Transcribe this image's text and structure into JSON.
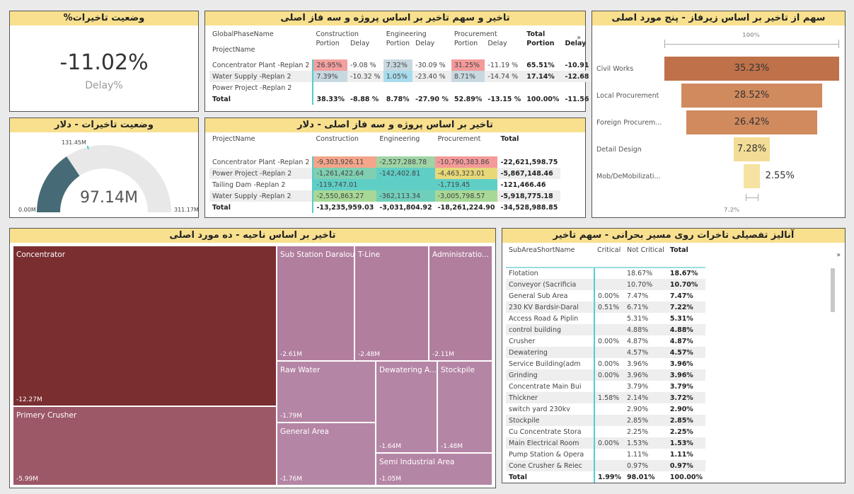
{
  "kpi": {
    "title": "وضعیت تاخیرات%",
    "value": "-11.02%",
    "label": "Delay%"
  },
  "gauge": {
    "title": "وضعیت تاخیرات - دلار",
    "value": 97.14,
    "value_label": "97.14M",
    "target": 131.45,
    "target_label": "131.45M",
    "min_label": "0.00M",
    "max": 311.17,
    "max_label": "311.17M",
    "colors": {
      "fill": "#466b77",
      "track": "#e8e8e8",
      "target": "#4fd1c5"
    }
  },
  "portion_table": {
    "title": "تاخیر و سهم تاخیر بر اساس پروژه و سه فاز اصلی",
    "row_header1": "GlobalPhaseName",
    "row_header2": "ProjectName",
    "groups": [
      "Construction",
      "Engineering",
      "Procurement",
      "Total"
    ],
    "sub": [
      "Portion",
      "Delay",
      "Portion",
      "Delay",
      "Portion",
      "Delay",
      "Portion",
      "Delay"
    ],
    "rows": [
      {
        "name": "Concentrator Plant -Replan 2",
        "cells": [
          "26.95%",
          "-9.08 %",
          "7.32%",
          "-30.09 %",
          "31.25%",
          "-11.19 %",
          "65.51%",
          "-10.91 %"
        ]
      },
      {
        "name": "Water Supply -Replan 2",
        "cells": [
          "7.39%",
          "-10.32 %",
          "1.05%",
          "-23.40 %",
          "8.71%",
          "-14.74 %",
          "17.14%",
          "-12.68 %"
        ]
      },
      {
        "name": "Power Project -Replan 2",
        "cells": [
          "",
          "",
          "",
          "",
          "",
          "",
          "",
          ""
        ]
      }
    ],
    "total": {
      "name": "Total",
      "cells": [
        "38.33%",
        "-8.88 %",
        "8.78%",
        "-27.90 %",
        "52.89%",
        "-13.15 %",
        "100.00%",
        "-11.56 %"
      ]
    }
  },
  "dollar_table": {
    "title": "تاخیر بر اساس پروژه و سه فاز اصلی - دلار",
    "headers": [
      "ProjectName",
      "Construction",
      "Engineering",
      "Procurement",
      "Total"
    ],
    "rows": [
      {
        "cells": [
          "Concentrator Plant -Replan 2",
          "-9,303,926.11",
          "-2,527,288.78",
          "-10,790,383.86",
          "-22,621,598.75"
        ],
        "colors": [
          "#f4a58a",
          "#9fd4a5",
          "#f49a9a"
        ]
      },
      {
        "cells": [
          "Power Project -Replan 2",
          "-1,261,422.64",
          "-142,402.81",
          "-4,463,323.01",
          "-5,867,148.46"
        ],
        "colors": [
          "#7fcfb0",
          "#5fcfc6",
          "#e8d878"
        ]
      },
      {
        "cells": [
          "Tailing Dam -Replan 2",
          "-119,747.01",
          "",
          "-1,719.45",
          "-121,466.46"
        ],
        "colors": [
          "#5fcfc6",
          "#5fcfc6",
          "#5fcfc6"
        ]
      },
      {
        "cells": [
          "Water Supply -Replan 2",
          "-2,550,863.27",
          "-362,113.34",
          "-3,005,798.57",
          "-5,918,775.18"
        ],
        "colors": [
          "#a8d896",
          "#6fcfbb",
          "#a8d896"
        ]
      }
    ],
    "total": [
      "Total",
      "-13,235,959.03",
      "-3,031,804.92",
      "-18,261,224.90",
      "-34,528,988.85"
    ]
  },
  "funnel": {
    "title": "سهم از تاخیر بر اساس زیرفاز - پنج مورد اصلی",
    "top_label": "100%",
    "bottom_label": "7.2%",
    "items": [
      {
        "name": "Civil Works",
        "value": 35.23,
        "label": "35.23%",
        "color": "#bf714a"
      },
      {
        "name": "Local Procurement",
        "value": 28.52,
        "label": "28.52%",
        "color": "#d08a5e"
      },
      {
        "name": "Foreign Procurem...",
        "value": 26.42,
        "label": "26.42%",
        "color": "#d08a5e"
      },
      {
        "name": "Detail Design",
        "value": 7.28,
        "label": "7.28%",
        "color": "#f3dc95"
      },
      {
        "name": "Mob/DeMobilizati...",
        "value": 2.55,
        "label": "2.55%",
        "color": "#f6e3a2"
      }
    ]
  },
  "treemap": {
    "title": "تاخیر بر اساس ناحیه - ده مورد اصلی",
    "tiles": [
      {
        "name": "Concentrator",
        "value": "-12.27M",
        "color": "#7a2e30"
      },
      {
        "name": "Primery Crusher",
        "value": "-5.99M",
        "color": "#9d5867"
      },
      {
        "name": "Sub Station Daralou",
        "value": "-2.61M",
        "color": "#b17e9e"
      },
      {
        "name": "T-Line",
        "value": "-2.48M",
        "color": "#b17e9e"
      },
      {
        "name": "Administratio...",
        "value": "-2.11M",
        "color": "#b17e9e"
      },
      {
        "name": "Raw Water",
        "value": "-1.79M",
        "color": "#b585a5"
      },
      {
        "name": "General Area",
        "value": "-1.76M",
        "color": "#b585a5"
      },
      {
        "name": "Dewatering A...",
        "value": "-1.64M",
        "color": "#b585a5"
      },
      {
        "name": "Stockpile",
        "value": "-1.48M",
        "color": "#b585a5"
      },
      {
        "name": "Semi Industrial Area",
        "value": "-1.05M",
        "color": "#b585a5"
      }
    ]
  },
  "critical_table": {
    "title": "آنالیز تفصیلی تاخرات روی مسیر بحرانی  - سهم تاخیر",
    "headers": [
      "SubAreaShortName",
      "Critical",
      "Not Critical",
      "Total"
    ],
    "rows": [
      [
        "Flotation",
        "",
        "18.67%",
        "18.67%"
      ],
      [
        "Conveyor (Sacrificia",
        "",
        "10.70%",
        "10.70%"
      ],
      [
        "General Sub Area",
        "0.00%",
        "7.47%",
        "7.47%"
      ],
      [
        "230 KV Bardsir-Daral",
        "0.51%",
        "6.71%",
        "7.22%"
      ],
      [
        "Access Road & Piplin",
        "",
        "5.31%",
        "5.31%"
      ],
      [
        "control building",
        "",
        "4.88%",
        "4.88%"
      ],
      [
        "Crusher",
        "0.00%",
        "4.87%",
        "4.87%"
      ],
      [
        "Dewatering",
        "",
        "4.57%",
        "4.57%"
      ],
      [
        "Service Building(adm",
        "0.00%",
        "3.96%",
        "3.96%"
      ],
      [
        "Grinding",
        "0.00%",
        "3.96%",
        "3.96%"
      ],
      [
        "Concentrate Main Bui",
        "",
        "3.79%",
        "3.79%"
      ],
      [
        "Thickner",
        "1.58%",
        "2.14%",
        "3.72%"
      ],
      [
        "switch yard 230kv",
        "",
        "2.90%",
        "2.90%"
      ],
      [
        "Stockpile",
        "",
        "2.85%",
        "2.85%"
      ],
      [
        "Cu Concentrate Stora",
        "",
        "2.25%",
        "2.25%"
      ],
      [
        "Main Electrical Room",
        "0.00%",
        "1.53%",
        "1.53%"
      ],
      [
        "Pump Station & Opera",
        "",
        "1.11%",
        "1.11%"
      ],
      [
        "Cone Crusher & Reiec",
        "",
        "0.97%",
        "0.97%"
      ]
    ],
    "total": [
      "Total",
      "1.99%",
      "98.01%",
      "100.00%"
    ]
  }
}
